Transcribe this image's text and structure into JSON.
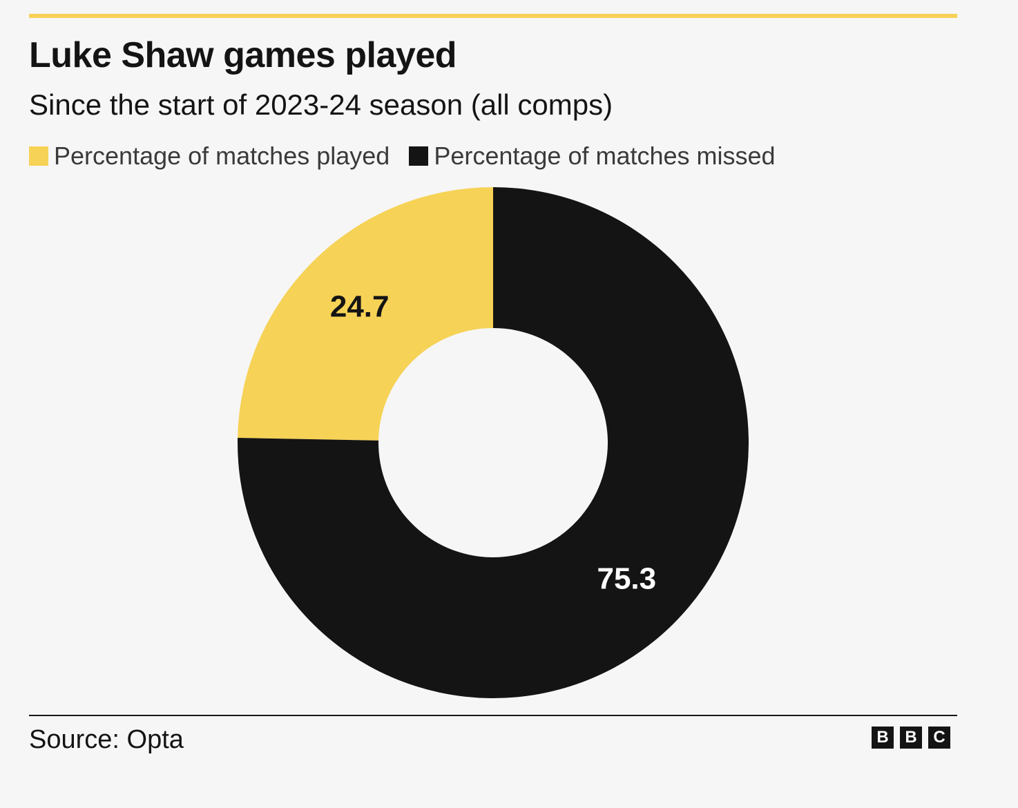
{
  "header": {
    "title": "Luke Shaw games played",
    "subtitle": "Since the start of 2023-24 season (all comps)"
  },
  "legend": {
    "played_label": "Percentage of matches played",
    "missed_label": "Percentage of matches missed"
  },
  "colors": {
    "played": "#f6d256",
    "missed": "#141414",
    "background": "#f6f6f6",
    "accent_rule": "#f6d256"
  },
  "chart_data": {
    "type": "pie",
    "variant": "donut",
    "title": "Luke Shaw games played",
    "subtitle": "Since the start of 2023-24 season (all comps)",
    "legend_position": "top-left",
    "slices": [
      {
        "name": "Percentage of matches played",
        "value": 24.7,
        "label": "24.7",
        "color": "#f6d256"
      },
      {
        "name": "Percentage of matches missed",
        "value": 75.3,
        "label": "75.3",
        "color": "#141414"
      }
    ]
  },
  "footer": {
    "source": "Source: Opta",
    "logo_letters": [
      "B",
      "B",
      "C"
    ]
  }
}
